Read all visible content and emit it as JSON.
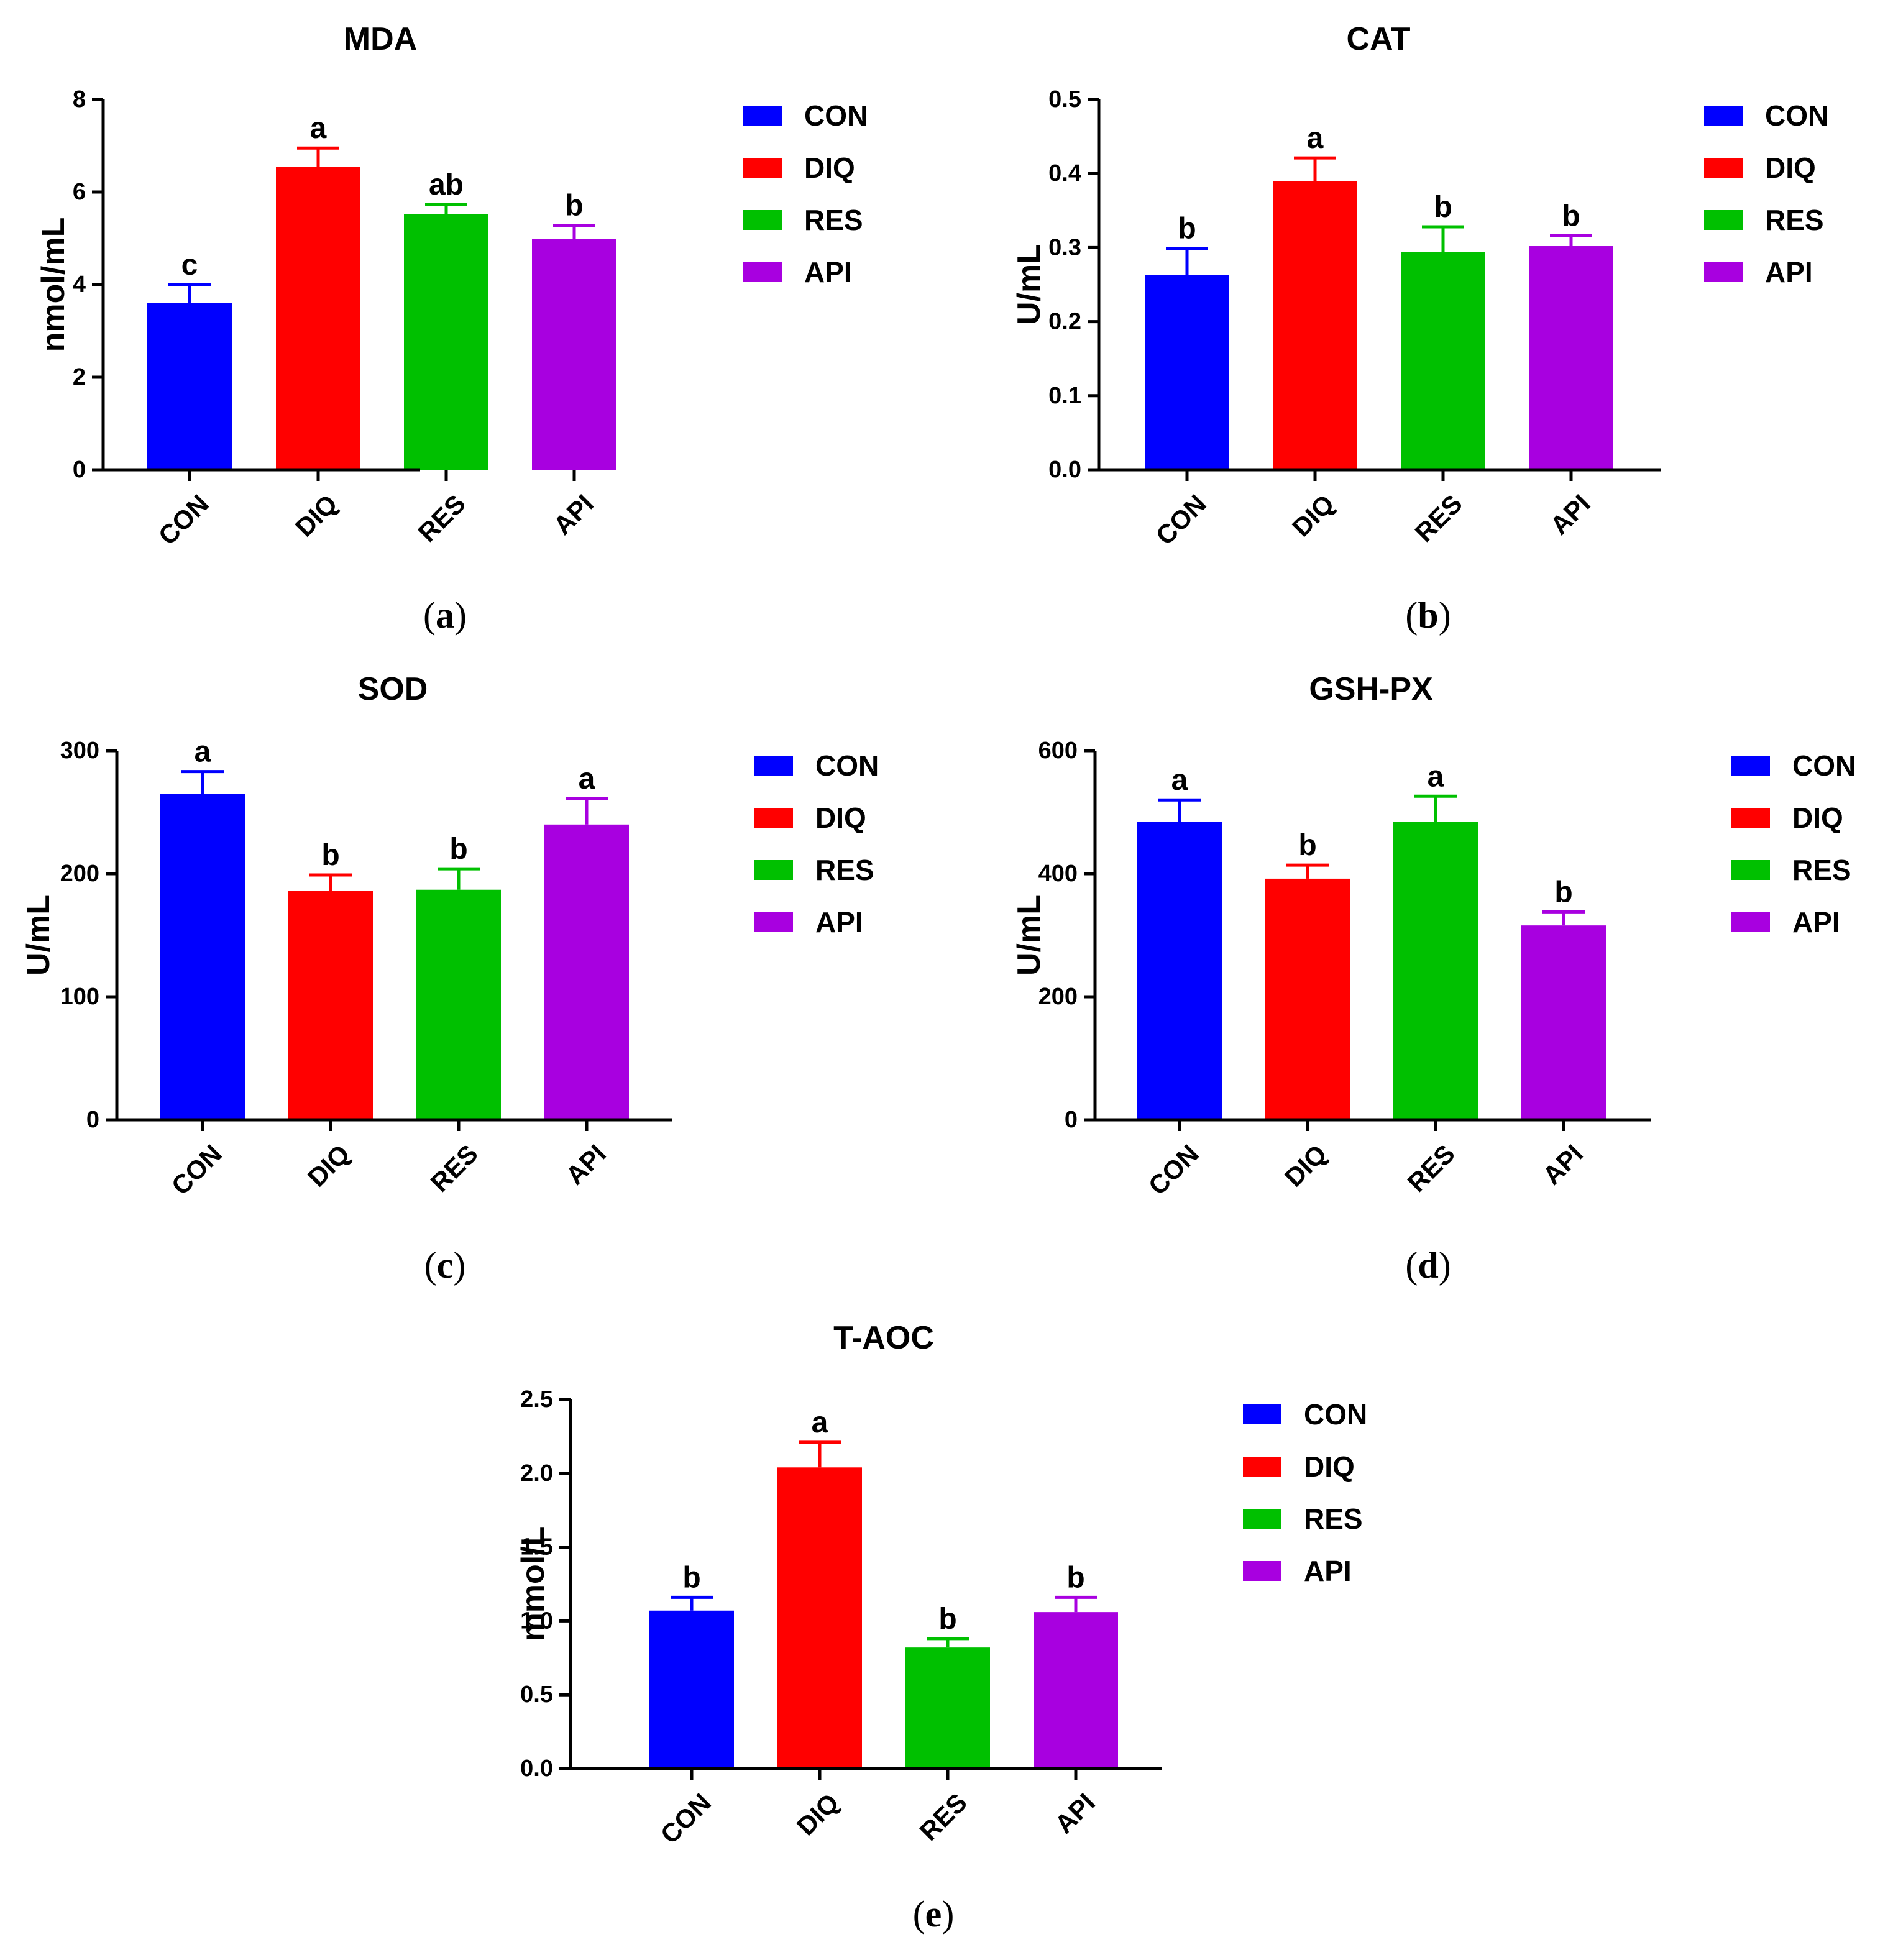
{
  "legend_labels": [
    "CON",
    "DIQ",
    "RES",
    "API"
  ],
  "colors": {
    "CON": "#0000ff",
    "DIQ": "#ff0000",
    "RES": "#00c000",
    "API": "#a800e0"
  },
  "chart_data": [
    {
      "type": "bar",
      "title": "MDA",
      "ylabel": "nmol/mL",
      "caption": "a",
      "categories": [
        "CON",
        "DIQ",
        "RES",
        "API"
      ],
      "values": [
        3.6,
        6.55,
        5.53,
        4.98
      ],
      "errors": [
        0.4,
        0.4,
        0.2,
        0.3
      ],
      "significance": [
        "c",
        "a",
        "ab",
        "b"
      ],
      "ylim": [
        0,
        8
      ],
      "yticks": [
        "0",
        "2",
        "4",
        "6",
        "8"
      ],
      "ytick_values": [
        0,
        2,
        4,
        6,
        8
      ]
    },
    {
      "type": "bar",
      "title": "CAT",
      "ylabel": "U/mL",
      "caption": "b",
      "categories": [
        "CON",
        "DIQ",
        "RES",
        "API"
      ],
      "values": [
        0.263,
        0.39,
        0.294,
        0.302
      ],
      "errors": [
        0.036,
        0.031,
        0.034,
        0.014
      ],
      "significance": [
        "b",
        "a",
        "b",
        "b"
      ],
      "ylim": [
        0,
        0.5
      ],
      "yticks": [
        "0.0",
        "0.1",
        "0.2",
        "0.3",
        "0.4",
        "0.5"
      ],
      "ytick_values": [
        0,
        0.1,
        0.2,
        0.3,
        0.4,
        0.5
      ]
    },
    {
      "type": "bar",
      "title": "SOD",
      "ylabel": "U/mL",
      "caption": "c",
      "categories": [
        "CON",
        "DIQ",
        "RES",
        "API"
      ],
      "values": [
        265,
        186,
        187,
        240
      ],
      "errors": [
        18,
        13,
        17,
        21
      ],
      "significance": [
        "a",
        "b",
        "b",
        "a"
      ],
      "ylim": [
        0,
        300
      ],
      "yticks": [
        "0",
        "100",
        "200",
        "300"
      ],
      "ytick_values": [
        0,
        100,
        200,
        300
      ]
    },
    {
      "type": "bar",
      "title": "GSH-PX",
      "ylabel": "U/mL",
      "caption": "d",
      "categories": [
        "CON",
        "DIQ",
        "RES",
        "API"
      ],
      "values": [
        484,
        392,
        484,
        316
      ],
      "errors": [
        36,
        22,
        42,
        22
      ],
      "significance": [
        "a",
        "b",
        "a",
        "b"
      ],
      "ylim": [
        0,
        600
      ],
      "yticks": [
        "0",
        "200",
        "400",
        "600"
      ],
      "ytick_values": [
        0,
        200,
        400,
        600
      ]
    },
    {
      "type": "bar",
      "title": "T-AOC",
      "ylabel": "mmol/L",
      "caption": "e",
      "categories": [
        "CON",
        "DIQ",
        "RES",
        "API"
      ],
      "values": [
        1.07,
        2.04,
        0.82,
        1.06
      ],
      "errors": [
        0.09,
        0.17,
        0.06,
        0.1
      ],
      "significance": [
        "b",
        "a",
        "b",
        "b"
      ],
      "ylim": [
        0,
        2.5
      ],
      "yticks": [
        "0.0",
        "0.5",
        "1.0",
        "1.5",
        "2.0",
        "2.5"
      ],
      "ytick_values": [
        0,
        0.5,
        1.0,
        1.5,
        2.0,
        2.5
      ]
    }
  ]
}
